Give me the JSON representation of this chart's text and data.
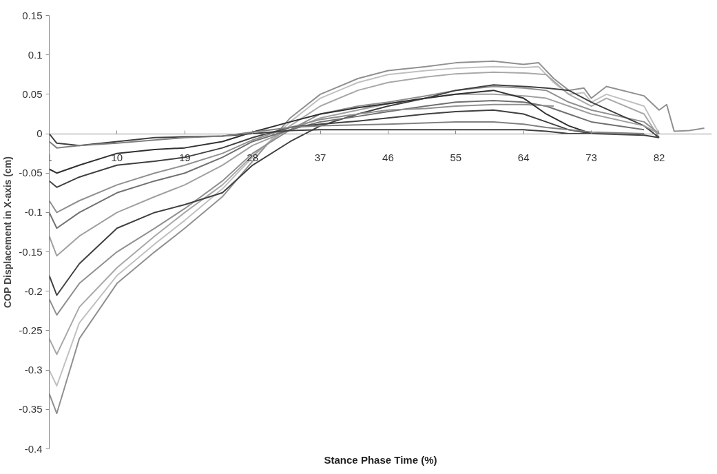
{
  "chart_data": {
    "type": "line",
    "xlabel": "Stance Phase Time (%)",
    "ylabel": "COP Displacement in X-axis (cm)",
    "xlim": [
      1,
      89
    ],
    "xticks": [
      1,
      10,
      19,
      28,
      37,
      46,
      55,
      64,
      73,
      82
    ],
    "ylim": [
      -0.4,
      0.15
    ],
    "yticks": [
      0.15,
      0.1,
      0.05,
      0,
      -0.05,
      -0.1,
      -0.15,
      -0.2,
      -0.25,
      -0.3,
      -0.35,
      -0.4
    ],
    "grid": false,
    "marker": "none",
    "line_style": "solid",
    "series": [
      {
        "color": "#909090",
        "x": [
          1,
          2,
          5,
          10,
          15,
          19,
          24,
          28,
          33,
          37,
          42,
          46,
          51,
          55,
          60,
          64,
          66,
          68,
          70,
          72,
          73,
          75,
          80,
          82,
          83,
          84,
          86,
          88
        ],
        "values": [
          -0.33,
          -0.355,
          -0.26,
          -0.19,
          -0.15,
          -0.12,
          -0.08,
          -0.035,
          0.02,
          0.05,
          0.07,
          0.08,
          0.085,
          0.09,
          0.092,
          0.088,
          0.09,
          0.07,
          0.055,
          0.058,
          0.045,
          0.06,
          0.048,
          0.03,
          0.037,
          0.003,
          0.004,
          0.007
        ]
      },
      {
        "color": "#c0c0c0",
        "x": [
          1,
          2,
          5,
          10,
          15,
          19,
          24,
          28,
          33,
          37,
          42,
          46,
          51,
          55,
          60,
          64,
          66,
          68,
          70,
          72,
          73,
          75,
          80,
          82
        ],
        "values": [
          -0.3,
          -0.32,
          -0.24,
          -0.18,
          -0.14,
          -0.11,
          -0.07,
          -0.03,
          0.015,
          0.045,
          0.065,
          0.075,
          0.08,
          0.083,
          0.085,
          0.084,
          0.085,
          0.065,
          0.05,
          0.052,
          0.04,
          0.05,
          0.035,
          0.0
        ]
      },
      {
        "color": "#a8a8a8",
        "x": [
          1,
          2,
          5,
          10,
          15,
          19,
          24,
          28,
          33,
          37,
          42,
          46,
          51,
          55,
          60,
          64,
          67,
          70,
          73,
          75,
          80,
          82
        ],
        "values": [
          -0.26,
          -0.28,
          -0.22,
          -0.17,
          -0.13,
          -0.1,
          -0.065,
          -0.028,
          0.01,
          0.035,
          0.055,
          0.065,
          0.072,
          0.076,
          0.078,
          0.077,
          0.075,
          0.05,
          0.035,
          0.045,
          0.025,
          -0.005
        ]
      },
      {
        "color": "#909090",
        "x": [
          1,
          2,
          5,
          10,
          15,
          19,
          24,
          28,
          33,
          37,
          42,
          46,
          51,
          55,
          60,
          64,
          67,
          70,
          73,
          80,
          82
        ],
        "values": [
          -0.21,
          -0.23,
          -0.19,
          -0.15,
          -0.12,
          -0.095,
          -0.06,
          -0.025,
          0.005,
          0.025,
          0.035,
          0.04,
          0.048,
          0.055,
          0.06,
          0.058,
          0.055,
          0.04,
          0.03,
          0.015,
          0.0
        ]
      },
      {
        "color": "#404040",
        "x": [
          1,
          2,
          5,
          10,
          15,
          19,
          24,
          28,
          33,
          37,
          42,
          46,
          51,
          55,
          60,
          64,
          67,
          70,
          73,
          80,
          82
        ],
        "values": [
          -0.18,
          -0.205,
          -0.165,
          -0.12,
          -0.1,
          -0.09,
          -0.075,
          -0.04,
          -0.01,
          0.01,
          0.025,
          0.035,
          0.045,
          0.055,
          0.062,
          0.06,
          0.058,
          0.055,
          0.04,
          0.01,
          -0.005
        ]
      },
      {
        "color": "#a0a0a0",
        "x": [
          1,
          2,
          5,
          10,
          15,
          19,
          24,
          28,
          33,
          37,
          42,
          46,
          51,
          55,
          60,
          64,
          67,
          70,
          73,
          80,
          82
        ],
        "values": [
          -0.13,
          -0.155,
          -0.13,
          -0.1,
          -0.08,
          -0.065,
          -0.04,
          -0.015,
          0.005,
          0.02,
          0.03,
          0.038,
          0.045,
          0.05,
          0.05,
          0.048,
          0.045,
          0.035,
          0.025,
          0.01,
          0.0
        ]
      },
      {
        "color": "#707070",
        "x": [
          1,
          2,
          5,
          10,
          15,
          19,
          24,
          28,
          33,
          37,
          42,
          46,
          51,
          55,
          60,
          64,
          67,
          70,
          73,
          80
        ],
        "values": [
          -0.1,
          -0.12,
          -0.1,
          -0.075,
          -0.06,
          -0.05,
          -0.03,
          -0.01,
          0.005,
          0.015,
          0.022,
          0.028,
          0.035,
          0.04,
          0.042,
          0.04,
          0.035,
          0.025,
          0.015,
          0.005
        ]
      },
      {
        "color": "#909090",
        "x": [
          1,
          2,
          5,
          10,
          15,
          19,
          24,
          28,
          33,
          37,
          42,
          46,
          51,
          55,
          60,
          64,
          68
        ],
        "values": [
          -0.085,
          -0.1,
          -0.085,
          -0.065,
          -0.05,
          -0.04,
          -0.025,
          -0.008,
          0.008,
          0.018,
          0.025,
          0.03,
          0.032,
          0.035,
          0.037,
          0.037,
          0.035
        ]
      },
      {
        "color": "#404040",
        "x": [
          1,
          2,
          5,
          10,
          15,
          19,
          24,
          28,
          33,
          37,
          42,
          46,
          51,
          55,
          60,
          64,
          67,
          70,
          73,
          80
        ],
        "values": [
          -0.06,
          -0.068,
          -0.055,
          -0.04,
          -0.035,
          -0.03,
          -0.018,
          -0.005,
          0.008,
          0.012,
          0.016,
          0.02,
          0.025,
          0.028,
          0.03,
          0.025,
          0.015,
          0.005,
          0.0,
          0.0
        ]
      },
      {
        "color": "#303030",
        "x": [
          1,
          2,
          5,
          10,
          15,
          19,
          24,
          28,
          33,
          37,
          42,
          46,
          51,
          55,
          60,
          64,
          67,
          70,
          73
        ],
        "values": [
          -0.045,
          -0.05,
          -0.04,
          -0.025,
          -0.02,
          -0.018,
          -0.01,
          0.002,
          0.015,
          0.025,
          0.033,
          0.038,
          0.045,
          0.05,
          0.055,
          0.045,
          0.025,
          0.01,
          0.0
        ]
      },
      {
        "color": "#404040",
        "x": [
          1,
          2,
          5,
          10,
          15,
          19,
          24,
          28,
          33,
          37,
          46,
          55,
          60,
          64,
          67,
          70,
          73,
          80,
          82
        ],
        "values": [
          0.0,
          -0.012,
          -0.015,
          -0.01,
          -0.005,
          -0.004,
          -0.003,
          0.0,
          0.004,
          0.005,
          0.005,
          0.005,
          0.005,
          0.005,
          0.003,
          0.0,
          0.0,
          -0.002,
          -0.005
        ]
      },
      {
        "color": "#808080",
        "x": [
          1,
          2,
          5,
          10,
          15,
          19,
          24,
          28,
          33,
          37,
          46,
          55,
          60,
          64,
          67,
          70,
          73,
          80
        ],
        "values": [
          -0.01,
          -0.018,
          -0.015,
          -0.012,
          -0.008,
          -0.005,
          -0.003,
          0.002,
          0.008,
          0.01,
          0.012,
          0.015,
          0.015,
          0.012,
          0.008,
          0.005,
          0.002,
          0.0
        ]
      }
    ]
  }
}
